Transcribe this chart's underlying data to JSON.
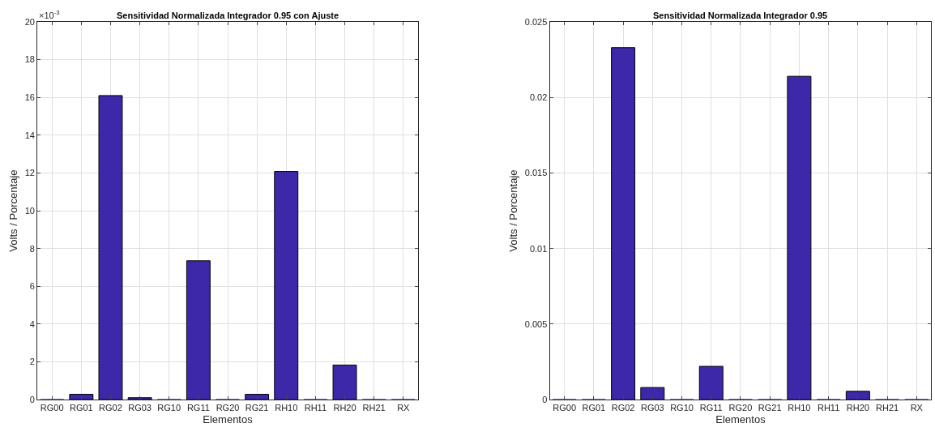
{
  "chart_data": [
    {
      "type": "bar",
      "title": "Sensitividad Normalizada Integrador 0.95 con Ajuste",
      "xlabel": "Elementos",
      "ylabel": "Volts / Porcentaje",
      "annotations": [
        "×10$^{-3}$"
      ],
      "categories": [
        "RG00",
        "RG01",
        "RG02",
        "RG03",
        "RG10",
        "RG11",
        "RG20",
        "RG21",
        "RH10",
        "RH11",
        "RH20",
        "RH21",
        "RX"
      ],
      "series": [
        {
          "color": "#3c28a8",
          "values": [
            0,
            0.28,
            16.1,
            0.1,
            0,
            7.35,
            0,
            0.28,
            12.08,
            0,
            1.83,
            0,
            0
          ]
        }
      ],
      "ylim": [
        0,
        20
      ],
      "yticks": [
        0,
        2,
        4,
        6,
        8,
        10,
        12,
        14,
        16,
        18,
        20
      ],
      "grid": true
    },
    {
      "type": "bar",
      "title": "Sensitividad Normalizada Integrador 0.95",
      "xlabel": "Elementos",
      "ylabel": "Volts / Porcentaje",
      "categories": [
        "RG00",
        "RG01",
        "RG02",
        "RG03",
        "RG10",
        "RG11",
        "RG20",
        "RG21",
        "RH10",
        "RH11",
        "RH20",
        "RH21",
        "RX"
      ],
      "series": [
        {
          "color": "#3c28a8",
          "values": [
            0,
            0,
            0.0233,
            0.0008,
            0,
            0.0022,
            0,
            0,
            0.0214,
            0,
            0.00055,
            0,
            0
          ]
        }
      ],
      "ylim": [
        0,
        0.025
      ],
      "yticks": [
        0,
        0.005,
        0.01,
        0.015,
        0.02,
        0.025
      ],
      "grid": true
    }
  ]
}
